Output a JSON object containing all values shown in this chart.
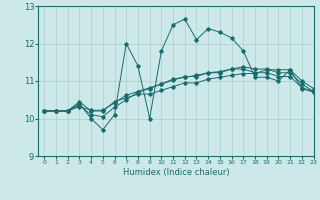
{
  "title": "",
  "xlabel": "Humidex (Indice chaleur)",
  "ylabel": "",
  "xlim": [
    -0.5,
    23
  ],
  "ylim": [
    9,
    13
  ],
  "yticks": [
    9,
    10,
    11,
    12,
    13
  ],
  "xticks": [
    0,
    1,
    2,
    3,
    4,
    5,
    6,
    7,
    8,
    9,
    10,
    11,
    12,
    13,
    14,
    15,
    16,
    17,
    18,
    19,
    20,
    21,
    22,
    23
  ],
  "bg_color": "#cce8e8",
  "line_color": "#1a6b6b",
  "grid_color": "#aacfcf",
  "series": [
    [
      10.2,
      10.2,
      10.2,
      10.4,
      10.0,
      9.7,
      10.1,
      12.0,
      11.4,
      10.0,
      11.8,
      12.5,
      12.65,
      12.1,
      12.4,
      12.3,
      12.15,
      11.8,
      11.1,
      11.1,
      11.0,
      11.3,
      10.8,
      10.7
    ],
    [
      10.2,
      10.2,
      10.2,
      10.45,
      10.2,
      10.2,
      10.45,
      10.55,
      10.65,
      10.65,
      10.75,
      10.85,
      10.95,
      10.95,
      11.05,
      11.1,
      11.15,
      11.2,
      11.2,
      11.3,
      11.3,
      11.3,
      11.0,
      10.8
    ],
    [
      10.2,
      10.2,
      10.2,
      10.35,
      10.1,
      10.05,
      10.3,
      10.5,
      10.7,
      10.8,
      10.92,
      11.05,
      11.1,
      11.15,
      11.22,
      11.25,
      11.32,
      11.38,
      11.32,
      11.32,
      11.22,
      11.22,
      10.92,
      10.72
    ],
    [
      10.2,
      10.2,
      10.2,
      10.32,
      10.22,
      10.22,
      10.42,
      10.62,
      10.72,
      10.82,
      10.92,
      11.02,
      11.12,
      11.12,
      11.22,
      11.22,
      11.32,
      11.32,
      11.22,
      11.22,
      11.12,
      11.12,
      10.82,
      10.72
    ]
  ]
}
